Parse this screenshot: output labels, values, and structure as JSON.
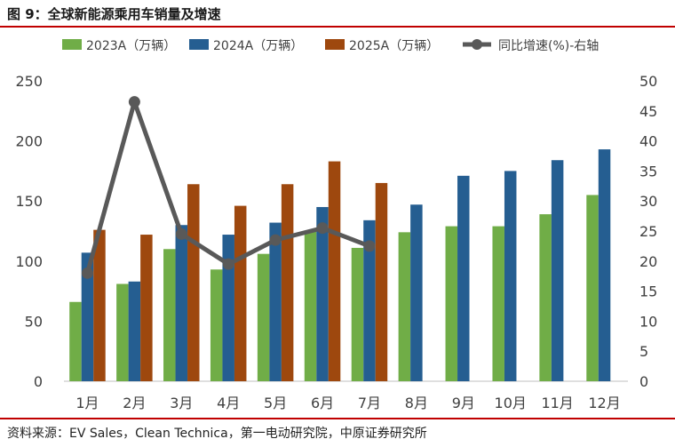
{
  "figure": {
    "title": "图 9：全球新能源乘用车销量及增速",
    "source": "资料来源：EV Sales，Clean Technica，第一电动研究院，中原证券研究所"
  },
  "colors": {
    "rule": "#c00000",
    "s2023": "#70ad47",
    "s2024": "#255e91",
    "s2025": "#9e480e",
    "growth": "#595959"
  },
  "chart_data": {
    "type": "bar",
    "categories": [
      "1月",
      "2月",
      "3月",
      "4月",
      "5月",
      "6月",
      "7月",
      "8月",
      "9月",
      "10月",
      "11月",
      "12月"
    ],
    "series": [
      {
        "name": "2023A（万辆）",
        "values": [
          66,
          81,
          110,
          93,
          106,
          125,
          111,
          124,
          129,
          129,
          139,
          155
        ],
        "color": "#70ad47"
      },
      {
        "name": "2024A（万辆）",
        "values": [
          107,
          83,
          130,
          122,
          132,
          145,
          134,
          147,
          171,
          175,
          184,
          193
        ],
        "color": "#255e91"
      },
      {
        "name": "2025A（万辆）",
        "values": [
          126,
          122,
          164,
          146,
          164,
          183,
          165,
          null,
          null,
          null,
          null,
          null
        ],
        "color": "#9e480e"
      }
    ],
    "line_series": {
      "name": "同比增速(%)-右轴",
      "axis": "right",
      "values": [
        18,
        46.5,
        24.5,
        19.5,
        23.5,
        25.5,
        22.5,
        null,
        null,
        null,
        null,
        null
      ],
      "color": "#595959"
    },
    "ylim": [
      0,
      250
    ],
    "yticks": [
      0,
      50,
      100,
      150,
      200,
      250
    ],
    "y2lim": [
      0,
      50
    ],
    "y2ticks": [
      0,
      5,
      10,
      15,
      20,
      25,
      30,
      35,
      40,
      45,
      50
    ],
    "legend_position": "top",
    "grid": false
  }
}
